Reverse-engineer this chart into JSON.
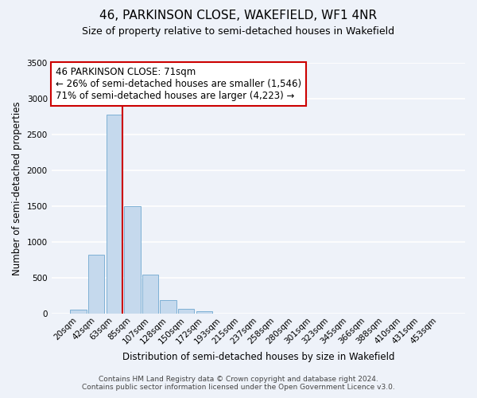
{
  "title": "46, PARKINSON CLOSE, WAKEFIELD, WF1 4NR",
  "subtitle": "Size of property relative to semi-detached houses in Wakefield",
  "xlabel": "Distribution of semi-detached houses by size in Wakefield",
  "ylabel": "Number of semi-detached properties",
  "bar_color": "#c5d9ed",
  "bar_edge_color": "#6fa8d0",
  "categories": [
    "20sqm",
    "42sqm",
    "63sqm",
    "85sqm",
    "107sqm",
    "128sqm",
    "150sqm",
    "172sqm",
    "193sqm",
    "215sqm",
    "237sqm",
    "258sqm",
    "280sqm",
    "301sqm",
    "323sqm",
    "345sqm",
    "366sqm",
    "388sqm",
    "410sqm",
    "431sqm",
    "453sqm"
  ],
  "values": [
    60,
    820,
    2780,
    1500,
    550,
    190,
    65,
    35,
    0,
    0,
    0,
    0,
    0,
    0,
    0,
    0,
    0,
    0,
    0,
    0,
    0
  ],
  "ylim": [
    0,
    3500
  ],
  "yticks": [
    0,
    500,
    1000,
    1500,
    2000,
    2500,
    3000,
    3500
  ],
  "vline_color": "#cc0000",
  "annotation_text": "46 PARKINSON CLOSE: 71sqm\n← 26% of semi-detached houses are smaller (1,546)\n71% of semi-detached houses are larger (4,223) →",
  "annotation_box_edge": "#cc0000",
  "annotation_box_face": "#ffffff",
  "footer_line1": "Contains HM Land Registry data © Crown copyright and database right 2024.",
  "footer_line2": "Contains public sector information licensed under the Open Government Licence v3.0.",
  "background_color": "#eef2f9",
  "grid_color": "#ffffff",
  "title_fontsize": 11,
  "subtitle_fontsize": 9,
  "axis_label_fontsize": 8.5,
  "tick_fontsize": 7.5,
  "annotation_fontsize": 8.5,
  "footer_fontsize": 6.5
}
